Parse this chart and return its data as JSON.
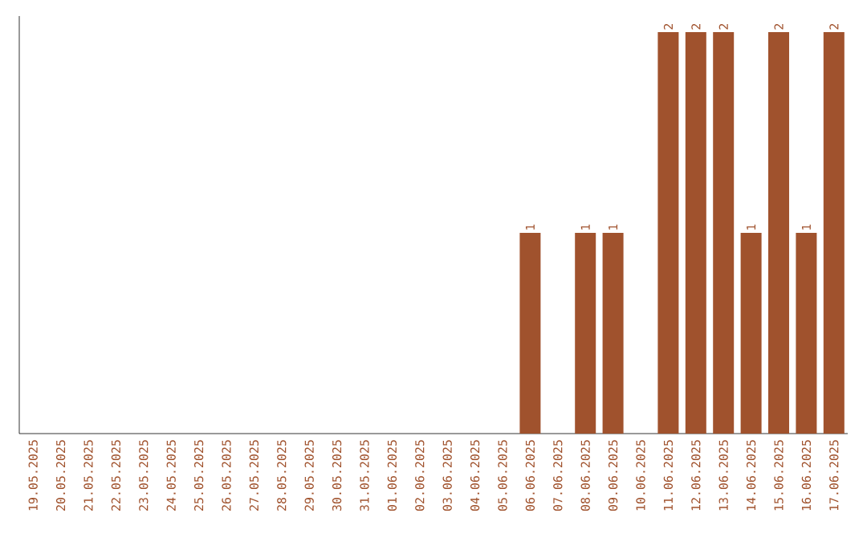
{
  "chart_data": {
    "type": "bar",
    "categories": [
      "19.05.2025",
      "20.05.2025",
      "21.05.2025",
      "22.05.2025",
      "23.05.2025",
      "24.05.2025",
      "25.05.2025",
      "26.05.2025",
      "27.05.2025",
      "28.05.2025",
      "29.05.2025",
      "30.05.2025",
      "31.05.2025",
      "01.06.2025",
      "02.06.2025",
      "03.06.2025",
      "04.06.2025",
      "05.06.2025",
      "06.06.2025",
      "07.06.2025",
      "08.06.2025",
      "09.06.2025",
      "10.06.2025",
      "11.06.2025",
      "12.06.2025",
      "13.06.2025",
      "14.06.2025",
      "15.06.2025",
      "16.06.2025",
      "17.06.2025"
    ],
    "values": [
      null,
      null,
      null,
      null,
      null,
      null,
      null,
      null,
      null,
      null,
      null,
      null,
      null,
      null,
      null,
      null,
      null,
      null,
      1,
      null,
      1,
      1,
      null,
      2,
      2,
      2,
      1,
      2,
      1,
      2
    ],
    "data_labels": true,
    "color": "#a0522d"
  }
}
